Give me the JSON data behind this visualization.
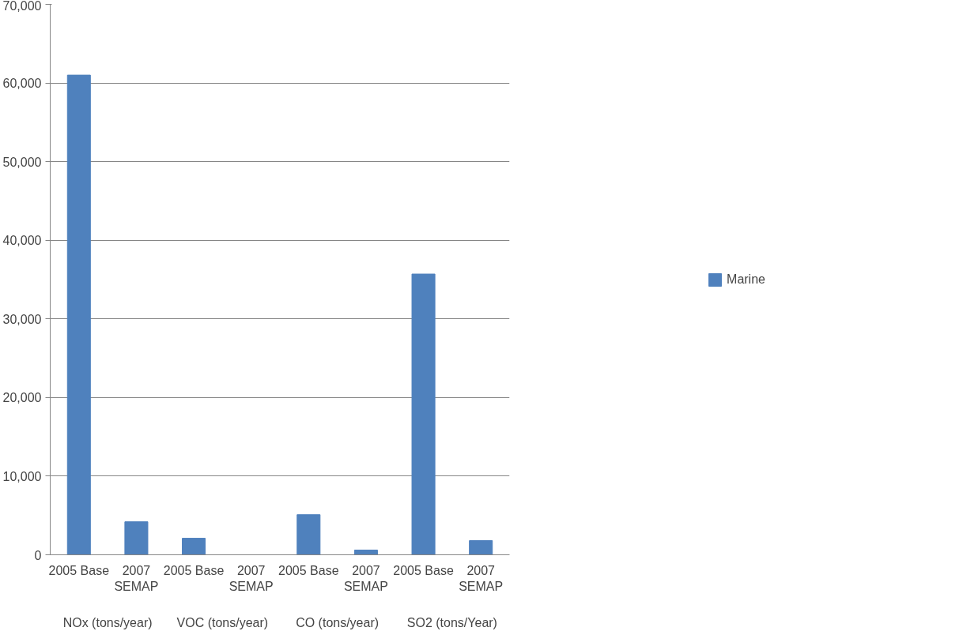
{
  "chart_data": {
    "type": "bar",
    "categories": [
      "2005 Base",
      "2007\nSEMAP",
      "2005 Base",
      "2007\nSEMAP",
      "2005 Base",
      "2007\nSEMAP",
      "2005 Base",
      "2007\nSEMAP"
    ],
    "series": [
      {
        "name": "Marine",
        "color": "#4f81bd",
        "values": [
          61000,
          4200,
          2100,
          0,
          5100,
          600,
          35700,
          1800
        ]
      }
    ],
    "annotations": [
      "NOx (tons/year)",
      "VOC (tons/year)",
      "CO (tons/year)",
      "SO2 (tons/Year)"
    ],
    "ylim": [
      0,
      70000
    ],
    "yticks": [
      {
        "value": 0,
        "label": "0"
      },
      {
        "value": 10000,
        "label": "10,000"
      },
      {
        "value": 20000,
        "label": "20,000"
      },
      {
        "value": 30000,
        "label": "30,000"
      },
      {
        "value": 40000,
        "label": "40,000"
      },
      {
        "value": 50000,
        "label": "50,000"
      },
      {
        "value": 60000,
        "label": "60,000"
      },
      {
        "value": 70000,
        "label": "70,000"
      }
    ],
    "grid": "y",
    "legend": "right"
  }
}
